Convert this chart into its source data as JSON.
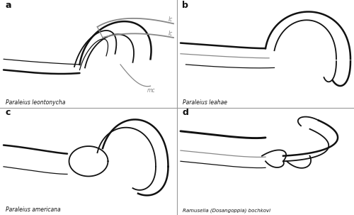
{
  "bg_color": "#ffffff",
  "border_color": "#999999",
  "dark": "#111111",
  "gray": "#888888",
  "lw_thick": 1.8,
  "lw_med": 1.3,
  "lw_thin": 0.9,
  "panel_labels": [
    "a",
    "b",
    "c",
    "d"
  ],
  "species_names": [
    "Paraleius leontonycha",
    "Paraleius leahae",
    "Paraleius americana",
    "Ramusella (Dosangoppia) bochkovi"
  ]
}
